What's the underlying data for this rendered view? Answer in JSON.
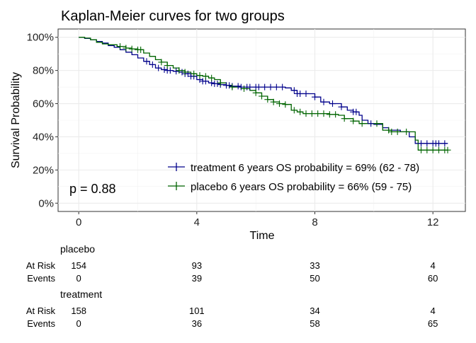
{
  "chart_data": {
    "type": "line",
    "subtype": "kaplan-meier",
    "title": "Kaplan-Meier curves for two groups",
    "xlabel": "Time",
    "ylabel": "Survival Probability",
    "xlim": [
      -0.7,
      13.1
    ],
    "ylim": [
      -0.05,
      1.05
    ],
    "x_ticks": [
      0,
      4,
      8,
      12
    ],
    "x_tick_labels": [
      "0",
      "4",
      "8",
      "12"
    ],
    "y_ticks": [
      0,
      0.2,
      0.4,
      0.6,
      0.8,
      1.0
    ],
    "y_tick_labels": [
      "0%",
      "20%",
      "40%",
      "60%",
      "80%",
      "100%"
    ],
    "grid": true,
    "pvalue_label": "p = 0.88",
    "legend_position": "bottom-right",
    "series": [
      {
        "name": "treatment 6 years OS  probability  =  69% (62 - 78)",
        "color": "#00008B",
        "points": [
          [
            0,
            1.0
          ],
          [
            0.1,
            1.0
          ],
          [
            0.2,
            0.993
          ],
          [
            0.4,
            0.985
          ],
          [
            0.6,
            0.975
          ],
          [
            0.8,
            0.965
          ],
          [
            1.0,
            0.95
          ],
          [
            1.2,
            0.94
          ],
          [
            1.4,
            0.925
          ],
          [
            1.6,
            0.91
          ],
          [
            1.8,
            0.895
          ],
          [
            2.0,
            0.875
          ],
          [
            2.2,
            0.855
          ],
          [
            2.4,
            0.835
          ],
          [
            2.6,
            0.815
          ],
          [
            2.8,
            0.805
          ],
          [
            3.0,
            0.8
          ],
          [
            3.2,
            0.795
          ],
          [
            3.4,
            0.79
          ],
          [
            3.6,
            0.78
          ],
          [
            3.8,
            0.765
          ],
          [
            4.0,
            0.745
          ],
          [
            4.2,
            0.735
          ],
          [
            4.4,
            0.725
          ],
          [
            4.6,
            0.72
          ],
          [
            4.8,
            0.715
          ],
          [
            5.0,
            0.71
          ],
          [
            5.2,
            0.705
          ],
          [
            5.5,
            0.7
          ],
          [
            6.0,
            0.7
          ],
          [
            6.5,
            0.7
          ],
          [
            7.0,
            0.695
          ],
          [
            7.2,
            0.68
          ],
          [
            7.4,
            0.66
          ],
          [
            7.6,
            0.66
          ],
          [
            8.0,
            0.64
          ],
          [
            8.2,
            0.61
          ],
          [
            8.5,
            0.6
          ],
          [
            8.9,
            0.58
          ],
          [
            9.1,
            0.56
          ],
          [
            9.3,
            0.55
          ],
          [
            9.5,
            0.53
          ],
          [
            9.6,
            0.5
          ],
          [
            9.8,
            0.48
          ],
          [
            10.0,
            0.475
          ],
          [
            10.3,
            0.455
          ],
          [
            10.5,
            0.44
          ],
          [
            10.9,
            0.43
          ],
          [
            11.2,
            0.4
          ],
          [
            11.4,
            0.36
          ],
          [
            12.0,
            0.36
          ],
          [
            12.5,
            0.36
          ]
        ],
        "censor_x": [
          2.3,
          2.5,
          2.7,
          2.9,
          3.0,
          3.1,
          3.3,
          3.5,
          3.6,
          3.7,
          3.8,
          3.9,
          4.1,
          4.2,
          4.3,
          4.5,
          4.6,
          4.7,
          4.8,
          5.0,
          5.1,
          5.2,
          5.4,
          5.5,
          5.7,
          5.8,
          6.0,
          6.1,
          6.3,
          6.5,
          6.7,
          6.9,
          7.3,
          7.4,
          7.5,
          7.7,
          8.0,
          8.3,
          8.6,
          8.9,
          9.3,
          9.4,
          9.9,
          11.6,
          11.8,
          12.0,
          12.1,
          12.2,
          12.4
        ]
      },
      {
        "name": "placebo 6 years OS  probability  =  66% (59 - 75)",
        "color": "#006400",
        "points": [
          [
            0,
            1.0
          ],
          [
            0.2,
            0.995
          ],
          [
            0.4,
            0.985
          ],
          [
            0.6,
            0.97
          ],
          [
            0.8,
            0.96
          ],
          [
            1.0,
            0.955
          ],
          [
            1.3,
            0.945
          ],
          [
            1.6,
            0.935
          ],
          [
            1.8,
            0.93
          ],
          [
            2.0,
            0.925
          ],
          [
            2.2,
            0.905
          ],
          [
            2.4,
            0.885
          ],
          [
            2.6,
            0.865
          ],
          [
            2.8,
            0.85
          ],
          [
            3.0,
            0.83
          ],
          [
            3.2,
            0.815
          ],
          [
            3.4,
            0.8
          ],
          [
            3.6,
            0.79
          ],
          [
            3.8,
            0.78
          ],
          [
            4.0,
            0.77
          ],
          [
            4.2,
            0.765
          ],
          [
            4.4,
            0.755
          ],
          [
            4.6,
            0.745
          ],
          [
            4.8,
            0.725
          ],
          [
            5.0,
            0.71
          ],
          [
            5.2,
            0.7
          ],
          [
            5.5,
            0.69
          ],
          [
            5.8,
            0.68
          ],
          [
            6.0,
            0.665
          ],
          [
            6.2,
            0.645
          ],
          [
            6.4,
            0.625
          ],
          [
            6.6,
            0.61
          ],
          [
            6.8,
            0.6
          ],
          [
            7.0,
            0.595
          ],
          [
            7.2,
            0.56
          ],
          [
            7.4,
            0.55
          ],
          [
            7.6,
            0.54
          ],
          [
            8.0,
            0.54
          ],
          [
            8.5,
            0.535
          ],
          [
            8.8,
            0.53
          ],
          [
            9.0,
            0.51
          ],
          [
            9.3,
            0.495
          ],
          [
            9.5,
            0.48
          ],
          [
            10.0,
            0.48
          ],
          [
            10.3,
            0.44
          ],
          [
            10.6,
            0.43
          ],
          [
            11.0,
            0.43
          ],
          [
            11.4,
            0.38
          ],
          [
            11.5,
            0.32
          ],
          [
            12.0,
            0.32
          ],
          [
            12.5,
            0.32
          ]
        ],
        "censor_x": [
          1.4,
          1.6,
          1.8,
          2.0,
          2.1,
          2.8,
          3.0,
          3.4,
          3.6,
          3.9,
          4.1,
          4.3,
          4.5,
          4.8,
          5.2,
          5.6,
          6.0,
          6.2,
          6.4,
          6.6,
          6.8,
          7.0,
          7.3,
          7.5,
          7.7,
          7.9,
          8.1,
          8.3,
          8.5,
          8.7,
          9.0,
          9.3,
          9.6,
          10.1,
          10.5,
          10.6,
          10.8,
          11.1,
          11.6,
          11.8,
          12.0,
          12.2,
          12.4,
          12.5
        ]
      }
    ]
  },
  "risk_table": {
    "groups": [
      {
        "name": "placebo",
        "rows": [
          {
            "label": "At Risk",
            "values": [
              "154",
              "93",
              "33",
              "4"
            ]
          },
          {
            "label": "Events",
            "values": [
              "0",
              "39",
              "50",
              "60"
            ]
          }
        ]
      },
      {
        "name": "treatment",
        "rows": [
          {
            "label": "At Risk",
            "values": [
              "158",
              "101",
              "34",
              "4"
            ]
          },
          {
            "label": "Events",
            "values": [
              "0",
              "36",
              "58",
              "65"
            ]
          }
        ]
      }
    ]
  }
}
